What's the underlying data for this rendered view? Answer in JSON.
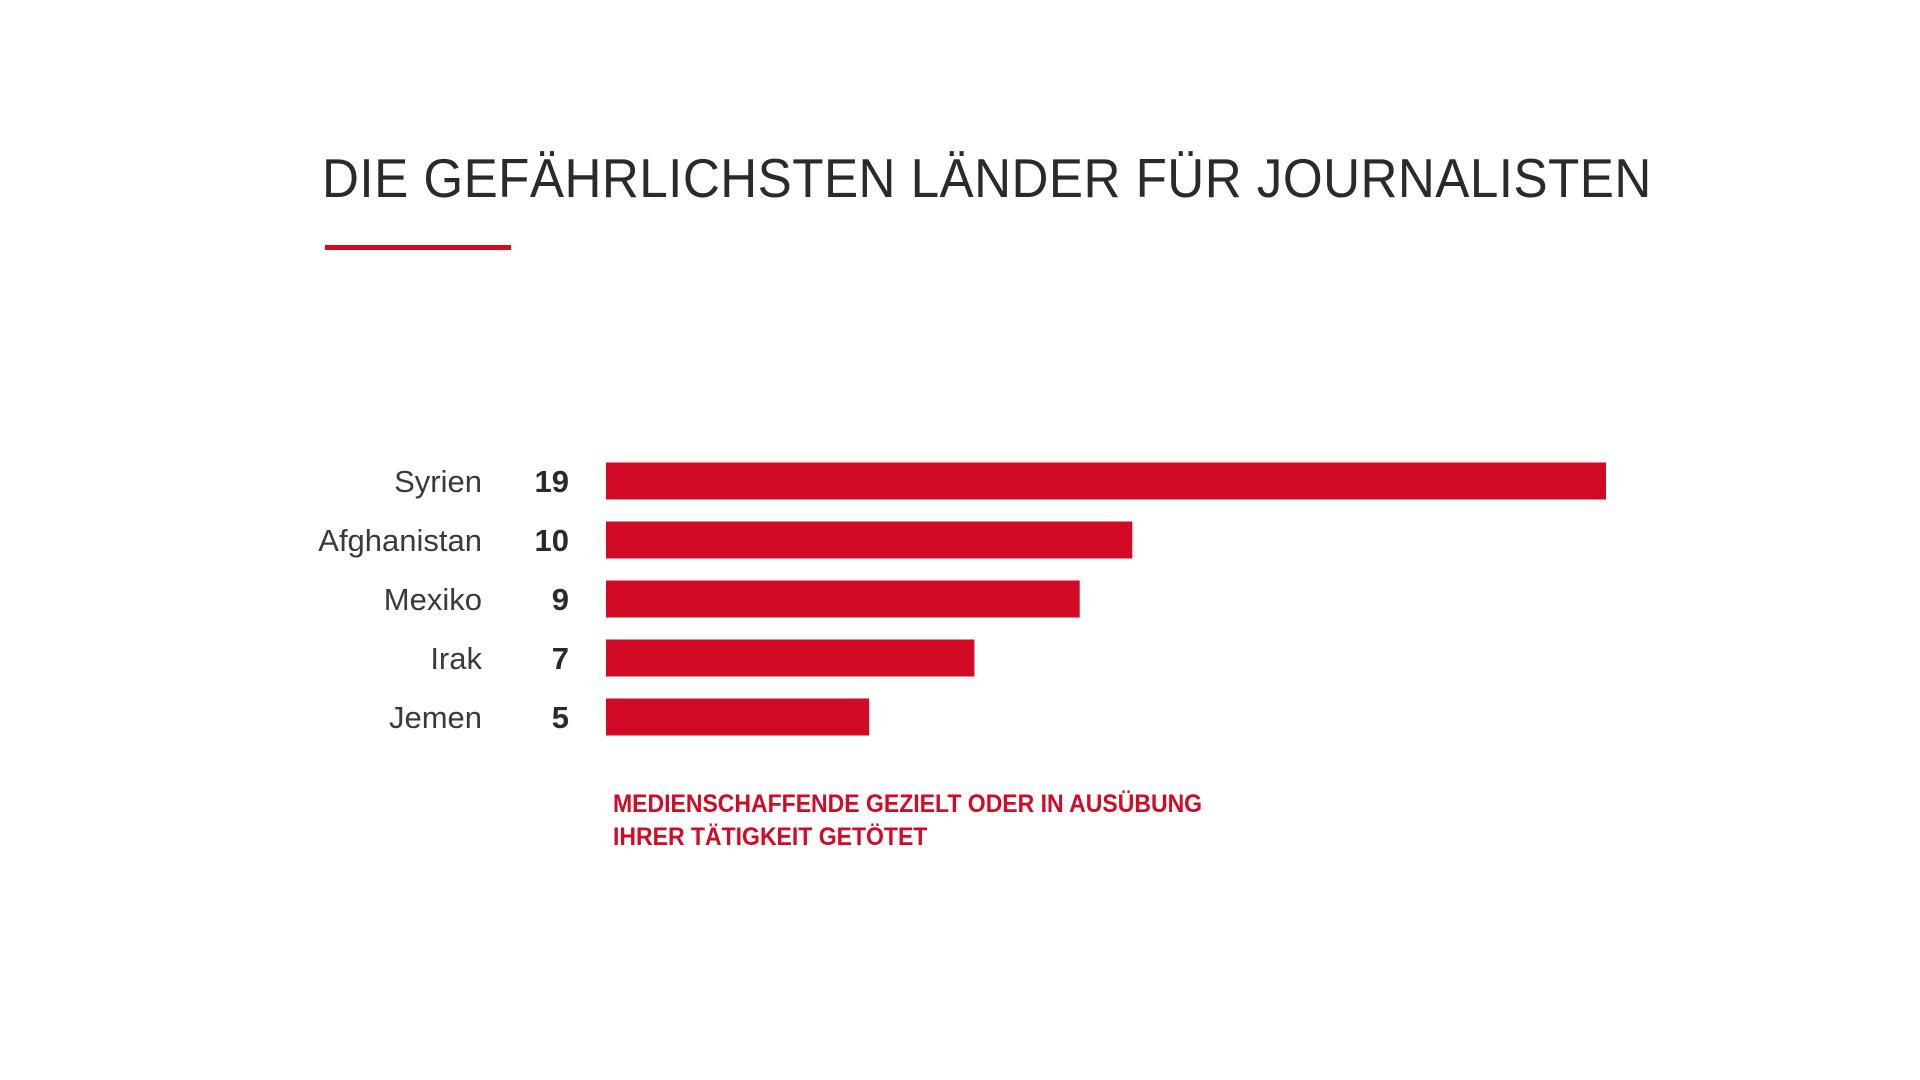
{
  "chart_data": {
    "type": "bar",
    "orientation": "horizontal",
    "title": "DIE GEFÄHRLICHSTEN LÄNDER FÜR JOURNALISTEN",
    "categories": [
      "Syrien",
      "Afghanistan",
      "Mexiko",
      "Irak",
      "Jemen"
    ],
    "values": [
      19,
      10,
      9,
      7,
      5
    ],
    "data_labels": [
      "19",
      "10",
      "9",
      "7",
      "5"
    ],
    "caption_lines": [
      "MEDIENSCHAFFENDE GEZIELT ODER IN AUSÜBUNG",
      "IHRER TÄTIGKEIT GETÖTET"
    ],
    "xlim": [
      0,
      19
    ],
    "grid": false,
    "colors": {
      "bar": "#d20a25",
      "accent": "#d20a25",
      "label": "#3a3a3a",
      "value": "#2a2a2a",
      "title": "#2a2a2a"
    }
  }
}
